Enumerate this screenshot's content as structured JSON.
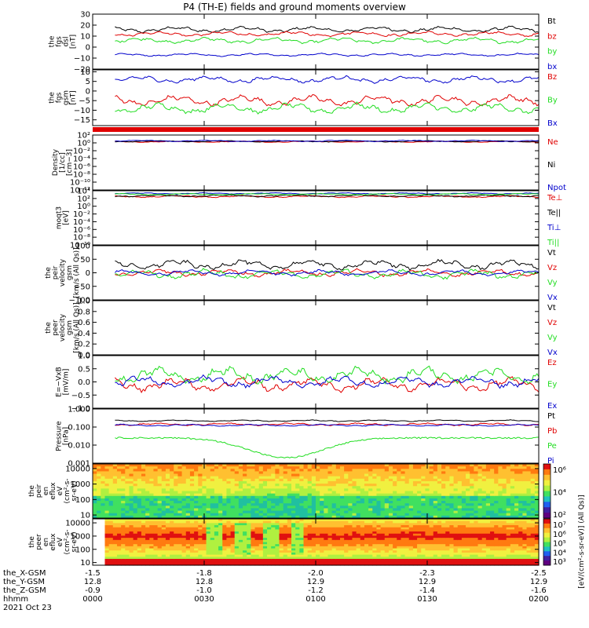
{
  "title": "P4 (TH-E) fields and ground moments overview",
  "time_axis": {
    "x_ticks": [
      0,
      30,
      60,
      90,
      120
    ],
    "rows": [
      {
        "label": "the_X-GSM",
        "values": [
          "-1.5",
          "-1.8",
          "-2.0",
          "-2.3",
          "-2.5"
        ]
      },
      {
        "label": "the_Y-GSM",
        "values": [
          "12.8",
          "12.8",
          "12.9",
          "12.9",
          "12.9"
        ]
      },
      {
        "label": "the_Z-GSM",
        "values": [
          "-0.9",
          "-1.0",
          "-1.2",
          "-1.4",
          "-1.6"
        ]
      },
      {
        "label": "hhmm",
        "values": [
          "0000",
          "0030",
          "0100",
          "0130",
          "0200"
        ]
      }
    ],
    "date": "2021 Oct 23"
  },
  "colors": {
    "black": "#000000",
    "red": "#e00000",
    "green": "#22dd22",
    "blue": "#0000cc"
  },
  "chart_data": [
    {
      "type": "line",
      "id": "fgs_dsl",
      "ylabel": [
        "the",
        "fgs",
        "dsl",
        "[nT]"
      ],
      "ylim": [
        -20,
        30
      ],
      "ticks": [
        30,
        20,
        10,
        0,
        -10,
        -20
      ],
      "tick_labels": [
        "30",
        "20",
        "10",
        "0",
        "−10",
        "−20"
      ],
      "series": [
        {
          "name": "Bt",
          "color": "#000000",
          "base": 16,
          "amp": 3
        },
        {
          "name": "bz",
          "color": "#e00000",
          "base": 12,
          "amp": 2.5
        },
        {
          "name": "by",
          "color": "#22dd22",
          "base": 6,
          "amp": 3
        },
        {
          "name": "bx",
          "color": "#0000cc",
          "base": -7,
          "amp": 1.5
        }
      ]
    },
    {
      "type": "line",
      "id": "fgs_gsm",
      "ylabel": [
        "the",
        "fgs",
        "gsm",
        "[nT]"
      ],
      "ylim": [
        -18,
        11
      ],
      "ticks": [
        10,
        5,
        0,
        -5,
        -10,
        -15
      ],
      "tick_labels": [
        "10",
        "5",
        "0",
        "−5",
        "−10",
        "−15"
      ],
      "series": [
        {
          "name": "Bz",
          "color": "#e00000",
          "base": -5,
          "amp": 3
        },
        {
          "name": "By",
          "color": "#22dd22",
          "base": -9,
          "amp": 3
        },
        {
          "name": "Bx",
          "color": "#0000cc",
          "base": 6,
          "amp": 2
        }
      ]
    },
    {
      "type": "line",
      "id": "density",
      "log": true,
      "ylabel": [
        "Density",
        "[1/cc]",
        "[cm−3]"
      ],
      "ylim": [
        -12,
        2
      ],
      "ticks": [
        2,
        0,
        -2,
        -4,
        -6,
        -8,
        -10,
        -12
      ],
      "tick_labels": [
        "10²",
        "10⁰",
        "10⁻²",
        "10⁻⁴",
        "10⁻⁶",
        "10⁻⁸",
        "10⁻¹⁰",
        "10⁻¹²"
      ],
      "series": [
        {
          "name": "Ne",
          "color": "#e00000",
          "base": 0.3,
          "amp": 0.2
        },
        {
          "name": "Ni",
          "color": "#000000",
          "base": 0.4,
          "amp": 0.2
        },
        {
          "name": "Npot",
          "color": "#0000cc",
          "base": 0.5,
          "amp": 0.2
        }
      ]
    },
    {
      "type": "line",
      "id": "temperature",
      "log": true,
      "ylabel": [
        "moqt3",
        "[eV]"
      ],
      "ylim": [
        -10,
        4
      ],
      "ticks": [
        4,
        2,
        0,
        -2,
        -4,
        -6,
        -8,
        -10
      ],
      "tick_labels": [
        "10⁴",
        "10²",
        "10⁰",
        "10⁻²",
        "10⁻⁴",
        "10⁻⁶",
        "10⁻⁸",
        "10⁻¹⁰"
      ],
      "series": [
        {
          "name": "Te⊥",
          "color": "#e00000",
          "base": 2.5,
          "amp": 0.3
        },
        {
          "name": "Te||",
          "color": "#000000",
          "base": 2.7,
          "amp": 0.3
        },
        {
          "name": "Ti⊥",
          "color": "#0000cc",
          "base": 3.3,
          "amp": 0.2
        },
        {
          "name": "Ti||",
          "color": "#22dd22",
          "base": 3.1,
          "amp": 0.2
        }
      ]
    },
    {
      "type": "line",
      "id": "peir_velocity",
      "ylabel": [
        "the",
        "peir",
        "velocity",
        "gsm",
        "[km/s (All Qs)]"
      ],
      "ylim": [
        -100,
        100
      ],
      "ticks": [
        100,
        50,
        0,
        -50,
        -100
      ],
      "tick_labels": [
        "100",
        "50",
        "0",
        "−50",
        "−100"
      ],
      "series": [
        {
          "name": "Vt",
          "color": "#000000",
          "base": 30,
          "amp": 20
        },
        {
          "name": "Vz",
          "color": "#e00000",
          "base": 0,
          "amp": 15
        },
        {
          "name": "Vy",
          "color": "#22dd22",
          "base": -5,
          "amp": 20
        },
        {
          "name": "Vx",
          "color": "#0000cc",
          "base": 0,
          "amp": 12
        }
      ]
    },
    {
      "type": "line",
      "id": "peer_velocity",
      "ylabel": [
        "the",
        "peer",
        "velocity",
        "gsm",
        "[km/s (All Qs)]"
      ],
      "ylim": [
        0,
        1
      ],
      "ticks": [
        1.0,
        0.8,
        0.6,
        0.4,
        0.2,
        0.0
      ],
      "tick_labels": [
        "1.0",
        "0.8",
        "0.6",
        "0.4",
        "0.2",
        "0.0"
      ],
      "series": [
        {
          "name": "Vt",
          "color": "#000000"
        },
        {
          "name": "Vz",
          "color": "#e00000"
        },
        {
          "name": "Vy",
          "color": "#22dd22"
        },
        {
          "name": "Vx",
          "color": "#0000cc"
        }
      ]
    },
    {
      "type": "line",
      "id": "efield",
      "ylabel": [
        "E=−VxB",
        "[mV/m]"
      ],
      "ylim": [
        -1,
        1
      ],
      "ticks": [
        1.0,
        0.5,
        0.0,
        -0.5,
        -1.0
      ],
      "tick_labels": [
        "1.0",
        "0.5",
        "0.0",
        "−0.5",
        "−1.0"
      ],
      "series": [
        {
          "name": "Ez",
          "color": "#e00000",
          "base": -0.1,
          "amp": 0.3
        },
        {
          "name": "Ey",
          "color": "#22dd22",
          "base": 0.25,
          "amp": 0.35
        },
        {
          "name": "Ex",
          "color": "#0000cc",
          "base": 0.0,
          "amp": 0.25
        }
      ]
    },
    {
      "type": "line",
      "id": "pressure",
      "log": true,
      "ylabel": [
        "Pressure",
        "[nPa]"
      ],
      "ylim": [
        -3,
        0
      ],
      "ticks": [
        0,
        -1,
        -2,
        -3
      ],
      "tick_labels": [
        "1.000",
        "0.100",
        "0.010",
        "0.001"
      ],
      "series": [
        {
          "name": "Pt",
          "color": "#000000",
          "base": -0.65,
          "amp": 0.05
        },
        {
          "name": "Pb",
          "color": "#e00000",
          "base": -0.85,
          "amp": 0.08
        },
        {
          "name": "Pe",
          "color": "#22dd22",
          "base": -1.6,
          "amp": 0.2
        },
        {
          "name": "Pi",
          "color": "#0000cc",
          "base": -0.9,
          "amp": 0.06
        }
      ]
    },
    {
      "type": "heatmap",
      "id": "peir_spectrogram",
      "ylabel": [
        "the",
        "peir",
        "en",
        "eflux",
        "eV",
        "(cm²-s-",
        "sr-eV)"
      ],
      "ylim_log": [
        0.8,
        4.3
      ],
      "ticks": [
        4,
        3,
        2,
        1
      ],
      "tick_labels": [
        "10000",
        "1000",
        "100",
        "10"
      ],
      "colorbar_ticks": [
        "10⁶",
        "10⁴",
        "10²"
      ]
    },
    {
      "type": "heatmap",
      "id": "peer_spectrogram",
      "ylabel": [
        "the",
        "peer",
        "en",
        "eflux",
        "eV",
        "(cm²-s-",
        "sr-eV)"
      ],
      "ylim_log": [
        0.8,
        4.3
      ],
      "ticks": [
        4,
        3,
        2,
        1
      ],
      "tick_labels": [
        "10000",
        "1000",
        "100",
        "10"
      ],
      "colorbar_ticks": [
        "10⁷",
        "10⁶",
        "10⁵",
        "10⁴",
        "10³"
      ]
    }
  ],
  "colorbar_label": "[eV/(cm²-s-sr-eV)] (All Qs)]"
}
